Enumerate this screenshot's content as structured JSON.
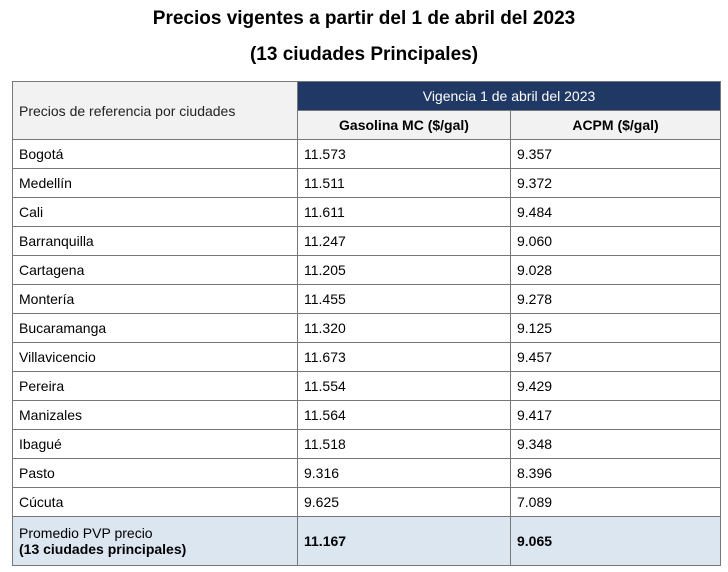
{
  "header": {
    "title": "Precios vigentes a partir del 1 de abril del 2023",
    "subtitle": "(13 ciudades Principales)"
  },
  "table": {
    "corner": "Precios de referencia por ciudades",
    "group": "Vigencia 1 de abril del 2023",
    "columns": [
      "Gasolina MC ($/gal)",
      "ACPM ($/gal)"
    ],
    "rows": [
      [
        "Bogotá",
        "11.573",
        "9.357"
      ],
      [
        "Medellín",
        "11.511",
        "9.372"
      ],
      [
        "Cali",
        "11.611",
        "9.484"
      ],
      [
        "Barranquilla",
        "11.247",
        "9.060"
      ],
      [
        "Cartagena",
        "11.205",
        "9.028"
      ],
      [
        "Montería",
        "11.455",
        "9.278"
      ],
      [
        "Bucaramanga",
        "11.320",
        "9.125"
      ],
      [
        "Villavicencio",
        "11.673",
        "9.457"
      ],
      [
        "Pereira",
        "11.554",
        "9.429"
      ],
      [
        "Manizales",
        "11.564",
        "9.417"
      ],
      [
        "Ibagué",
        "11.518",
        "9.348"
      ],
      [
        "Pasto",
        "9.316",
        "8.396"
      ],
      [
        "Cúcuta",
        "9.625",
        "7.089"
      ]
    ],
    "footer": {
      "label": [
        "Promedio PVP precio",
        "(13 ciudades principales)"
      ],
      "values": [
        "11.167",
        "9.065"
      ]
    }
  }
}
